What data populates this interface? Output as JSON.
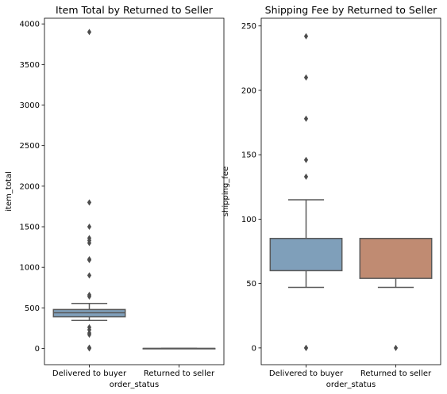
{
  "chart_data": [
    {
      "type": "box",
      "title": "Item Total by Returned to Seller",
      "xlabel": "order_status",
      "ylabel": "item_total",
      "categories": [
        "Delivered to buyer",
        "Returned to seller"
      ],
      "ylim": [
        -200,
        4070
      ],
      "yticks": [
        0,
        500,
        1000,
        1500,
        2000,
        2500,
        3000,
        3500,
        4000
      ],
      "grid": false,
      "colors": [
        "#7f9fba",
        "#c08b72"
      ],
      "boxes": [
        {
          "category": "Delivered to buyer",
          "q1": 390,
          "median": 440,
          "q3": 480,
          "whisker_low": 345,
          "whisker_high": 555,
          "outliers": [
            3900,
            1800,
            1500,
            1360,
            1330,
            1300,
            1100,
            1090,
            900,
            660,
            640,
            260,
            230,
            190,
            170,
            10,
            0
          ]
        },
        {
          "category": "Returned to seller",
          "q1": 0,
          "median": 0,
          "q3": 0,
          "whisker_low": 0,
          "whisker_high": 0,
          "outliers": []
        }
      ]
    },
    {
      "type": "box",
      "title": "Shipping Fee by Returned to Seller",
      "xlabel": "order_status",
      "ylabel": "shipping_fee",
      "categories": [
        "Delivered to buyer",
        "Returned to seller"
      ],
      "ylim": [
        -13,
        256
      ],
      "yticks": [
        0,
        50,
        100,
        150,
        200,
        250
      ],
      "grid": false,
      "colors": [
        "#7f9fba",
        "#c08b72"
      ],
      "boxes": [
        {
          "category": "Delivered to buyer",
          "q1": 60,
          "median": 85,
          "q3": 85,
          "whisker_low": 47,
          "whisker_high": 115,
          "outliers": [
            242,
            210,
            178,
            146,
            133,
            0,
            0
          ]
        },
        {
          "category": "Returned to seller",
          "q1": 54,
          "median": 85,
          "q3": 85,
          "whisker_low": 47,
          "whisker_high": 85,
          "outliers": [
            0
          ]
        }
      ]
    }
  ]
}
